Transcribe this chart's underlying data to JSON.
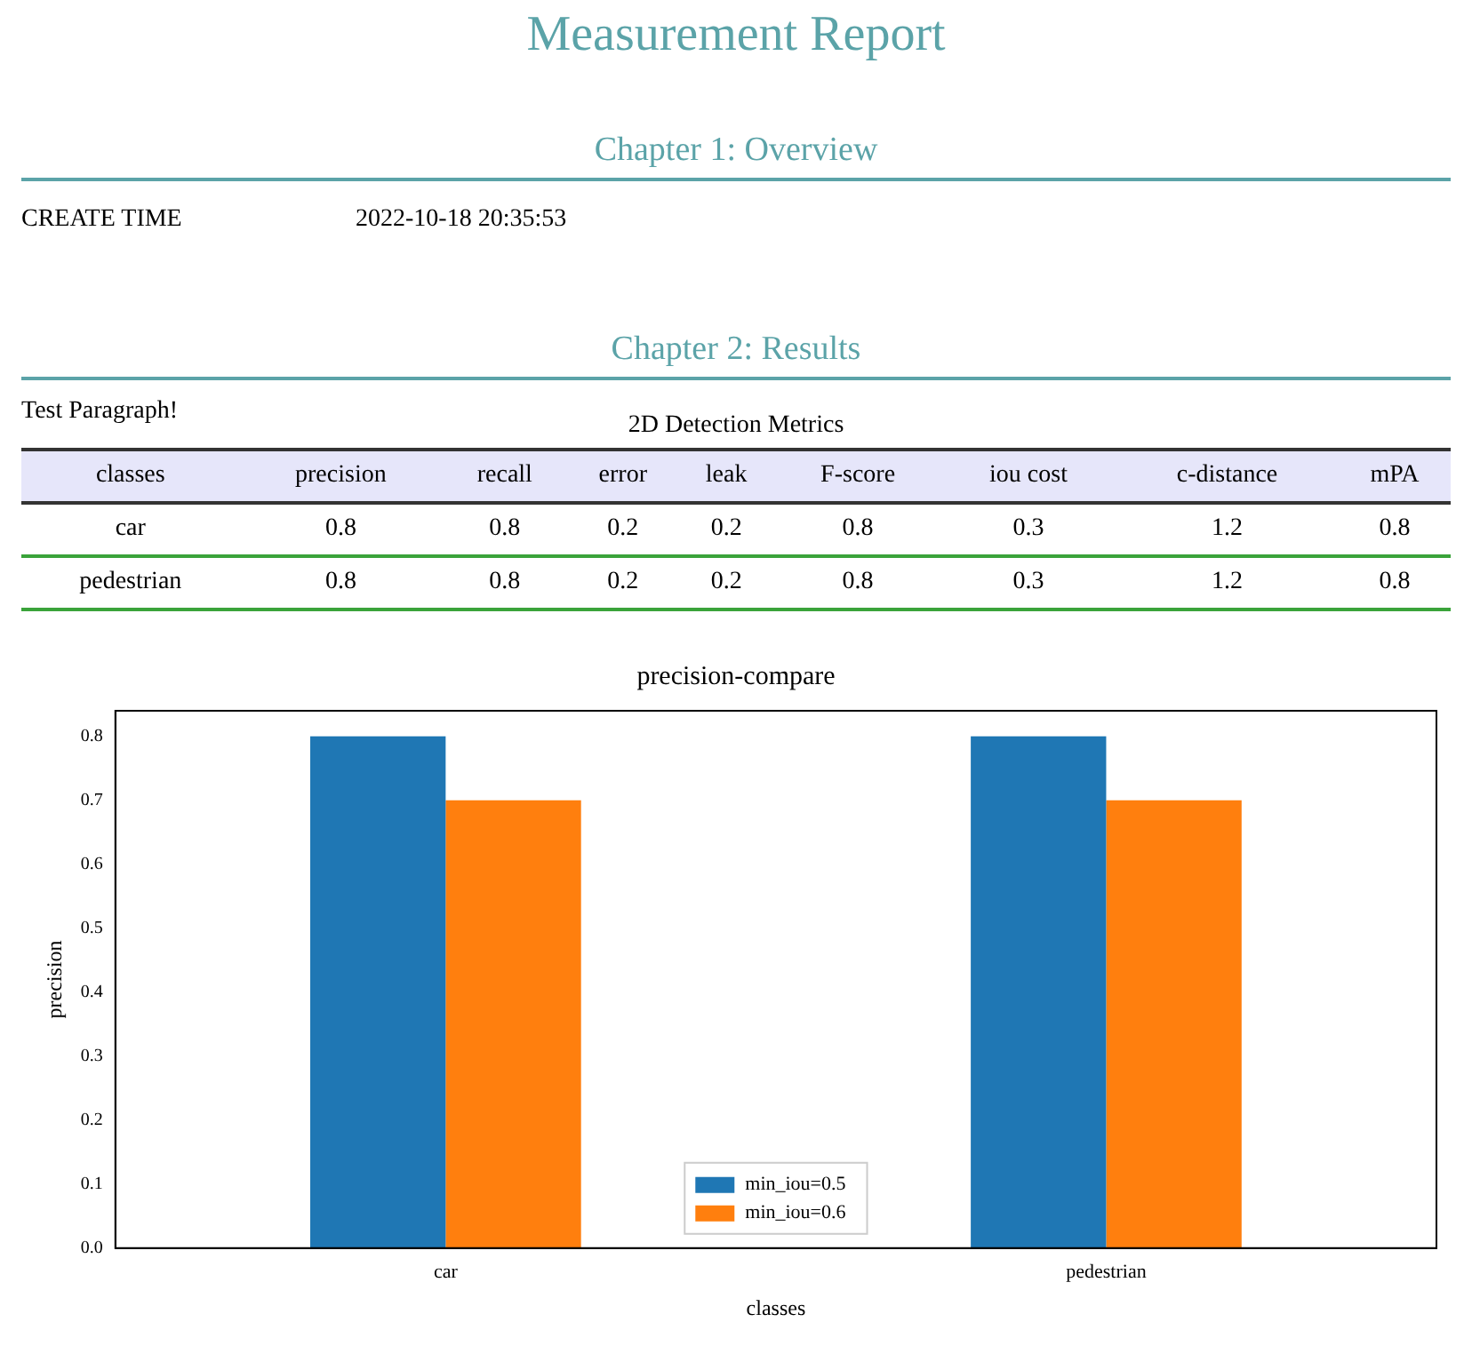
{
  "chart_data": [
    {
      "type": "other",
      "title": "Measurement Report",
      "annotations": [
        "Chapter 1: Overview",
        "CREATE TIME",
        "2022-10-18 20:35:53",
        "Chapter 2: Results",
        "Test Paragraph!"
      ]
    },
    {
      "type": "heatmap",
      "title": "2D Detection Metrics",
      "ylabel": "classes",
      "categories": [
        "precision",
        "recall",
        "error",
        "leak",
        "F-score",
        "iou cost",
        "c-distance",
        "mPA"
      ],
      "y_categories": [
        "car",
        "pedestrian"
      ],
      "data_labels": true,
      "cells": [
        [
          0.8,
          0.8,
          0.2,
          0.2,
          0.8,
          0.3,
          1.2,
          0.8
        ],
        [
          0.8,
          0.8,
          0.2,
          0.2,
          0.8,
          0.3,
          1.2,
          0.8
        ]
      ]
    },
    {
      "type": "bar",
      "title": "precision-compare",
      "xlabel": "classes",
      "ylabel": "precision",
      "categories": [
        "car",
        "pedestrian"
      ],
      "series": [
        {
          "name": "min_iou=0.5",
          "color": "#1f77b4",
          "values": [
            0.8,
            0.8
          ]
        },
        {
          "name": "min_iou=0.6",
          "color": "#ff7f0e",
          "values": [
            0.7,
            0.7
          ]
        }
      ],
      "ylim": [
        0,
        0.84
      ],
      "yticks": [
        {
          "value": 0,
          "label": "0.0"
        },
        0.1,
        0.2,
        0.3,
        0.4,
        0.5,
        0.6,
        0.7,
        0.8
      ],
      "legend": "bottom",
      "grid": false
    }
  ]
}
